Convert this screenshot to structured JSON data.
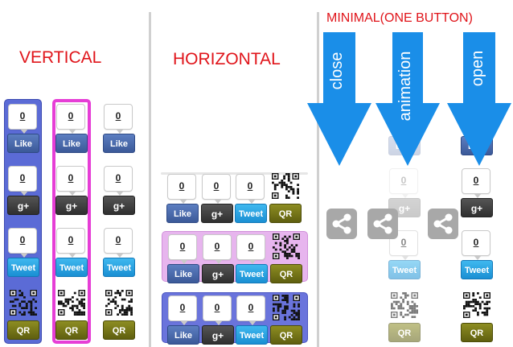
{
  "headings": {
    "vertical": "VERTICAL",
    "horizontal": "HORIZONTAL",
    "minimal": "MINIMAL(ONE BUTTON)"
  },
  "arrows": {
    "close": "close",
    "animation": "animation",
    "open": "open"
  },
  "buttons": {
    "count": "0",
    "like": "Like",
    "gplus": "g+",
    "tweet": "Tweet",
    "qr": "QR"
  },
  "colors": {
    "heading": "#e0141a",
    "vertical_panel_blue": "#5b6bd6",
    "vertical_panel_magenta": "#e63ed6",
    "horizontal_panel_pink": "#e7b5ee",
    "horizontal_panel_blue": "#6a74dc",
    "arrow_blue": "#1a8ee8",
    "share_gray": "#a8a8a8"
  },
  "icons": {
    "share": "share-icon",
    "qr": "qr-code-icon"
  }
}
